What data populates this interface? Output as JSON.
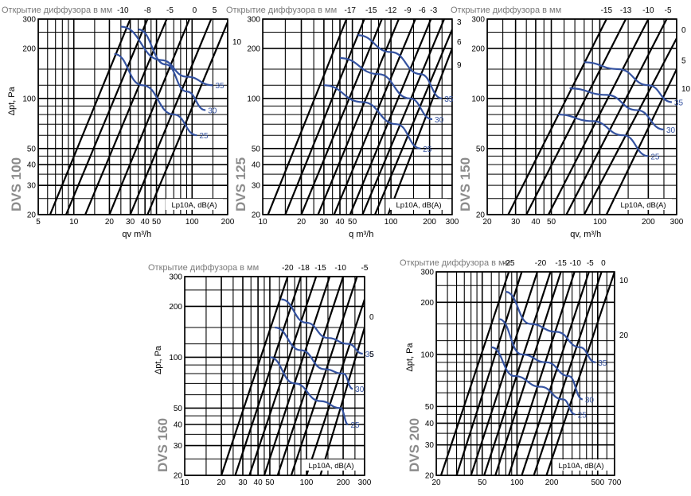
{
  "chart_data": [
    {
      "type": "line",
      "header": "Открытие диффузора в мм",
      "model": "DVS 100",
      "ylabel": "Δpt, Pa",
      "xlabel": "qv m³/h",
      "noise_label": "Lp10A, dB(A)",
      "x_ticks": [
        5,
        10,
        20,
        30,
        40,
        50,
        100,
        200
      ],
      "y_ticks": [
        20,
        30,
        40,
        50,
        100,
        200,
        300
      ],
      "xlim": [
        5,
        200
      ],
      "ylim": [
        20,
        300
      ],
      "opening_labels": [
        {
          "text": "-10",
          "x": 26,
          "y": 300
        },
        {
          "text": "-8",
          "x": 42,
          "y": 300
        },
        {
          "text": "-5",
          "x": 65,
          "y": 300
        },
        {
          "text": "0",
          "x": 105,
          "y": 300
        },
        {
          "text": "5",
          "x": 155,
          "y": 300
        },
        {
          "text": "10",
          "x": 200,
          "y": 220
        }
      ],
      "openings": [
        {
          "label": "-10",
          "points": [
            [
              6.3,
              20
            ],
            [
              30,
              300
            ]
          ]
        },
        {
          "label": "-8",
          "points": [
            [
              8.6,
              20
            ],
            [
              42,
              300
            ]
          ]
        },
        {
          "label": "-5",
          "points": [
            [
              12.5,
              20
            ],
            [
              61,
              300
            ]
          ]
        },
        {
          "label": "0",
          "points": [
            [
              20,
              20
            ],
            [
              95,
              300
            ]
          ]
        },
        {
          "label": "5",
          "points": [
            [
              30,
              20
            ],
            [
              145,
              300
            ]
          ]
        },
        {
          "label": "10",
          "points": [
            [
              42,
              20
            ],
            [
              205,
              300
            ]
          ]
        }
      ],
      "noise_series": [
        {
          "name": "35",
          "points": [
            [
              25,
              270
            ],
            [
              55,
              170
            ],
            [
              90,
              135
            ],
            [
              150,
              120
            ]
          ]
        },
        {
          "name": "30",
          "points": [
            [
              35,
              260
            ],
            [
              60,
              160
            ],
            [
              90,
              110
            ],
            [
              130,
              85
            ]
          ]
        },
        {
          "name": "25",
          "points": [
            [
              22,
              185
            ],
            [
              38,
              120
            ],
            [
              70,
              80
            ],
            [
              110,
              60
            ]
          ]
        }
      ]
    },
    {
      "type": "line",
      "header": "Открытие диффузора в мм",
      "model": "DVS 125",
      "ylabel": "",
      "xlabel": "q m³/h",
      "noise_label": "Lp10A, dB(A)",
      "x_ticks": [
        10,
        20,
        30,
        40,
        50,
        100,
        200,
        300
      ],
      "y_ticks": [
        20,
        30,
        40,
        50,
        100,
        200,
        300
      ],
      "xlim": [
        10,
        300
      ],
      "ylim": [
        20,
        300
      ],
      "opening_labels": [
        {
          "text": "-17",
          "x": 48,
          "y": 300
        },
        {
          "text": "-15",
          "x": 70,
          "y": 300
        },
        {
          "text": "-12",
          "x": 100,
          "y": 300
        },
        {
          "text": "-9",
          "x": 135,
          "y": 300
        },
        {
          "text": "-6",
          "x": 175,
          "y": 300
        },
        {
          "text": "-3",
          "x": 215,
          "y": 300
        },
        {
          "text": "3",
          "x": 300,
          "y": 290
        },
        {
          "text": "6",
          "x": 300,
          "y": 220
        },
        {
          "text": "9",
          "x": 300,
          "y": 160
        }
      ],
      "openings": [
        {
          "label": "-17",
          "points": [
            [
              11,
              20
            ],
            [
              45,
              300
            ]
          ]
        },
        {
          "label": "-15",
          "points": [
            [
              15,
              20
            ],
            [
              62,
              300
            ]
          ]
        },
        {
          "label": "-12",
          "points": [
            [
              20,
              20
            ],
            [
              85,
              300
            ]
          ]
        },
        {
          "label": "-9",
          "points": [
            [
              27,
              20
            ],
            [
              115,
              300
            ]
          ]
        },
        {
          "label": "-6",
          "points": [
            [
              36,
              20
            ],
            [
              155,
              300
            ]
          ]
        },
        {
          "label": "-3",
          "points": [
            [
              48,
              20
            ],
            [
              205,
              300
            ]
          ]
        },
        {
          "label": "0",
          "points": [
            [
              60,
              20
            ],
            [
              260,
              300
            ]
          ]
        },
        {
          "label": "3",
          "points": [
            [
              75,
              20
            ],
            [
              300,
              260
            ]
          ]
        },
        {
          "label": "6",
          "points": [
            [
              95,
              20
            ],
            [
              300,
              200
            ]
          ]
        }
      ],
      "noise_series": [
        {
          "name": "35",
          "points": [
            [
              55,
              240
            ],
            [
              100,
              190
            ],
            [
              170,
              140
            ],
            [
              250,
              100
            ]
          ]
        },
        {
          "name": "30",
          "points": [
            [
              40,
              175
            ],
            [
              80,
              140
            ],
            [
              140,
              100
            ],
            [
              210,
              75
            ]
          ]
        },
        {
          "name": "25",
          "points": [
            [
              30,
              120
            ],
            [
              60,
              95
            ],
            [
              110,
              70
            ],
            [
              170,
              50
            ]
          ]
        }
      ]
    },
    {
      "type": "line",
      "header": "Открытие диффузора в мм",
      "model": "DVS 150",
      "ylabel": "",
      "xlabel": "qv, m³/h",
      "noise_label": "Lp10A, dB(A)",
      "x_ticks": [
        20,
        30,
        40,
        50,
        100,
        200,
        300
      ],
      "y_ticks": [
        20,
        50,
        100,
        200,
        300
      ],
      "xlim": [
        20,
        300
      ],
      "ylim": [
        20,
        300
      ],
      "opening_labels": [
        {
          "text": "-15",
          "x": 110,
          "y": 300
        },
        {
          "text": "-13",
          "x": 145,
          "y": 300
        },
        {
          "text": "-10",
          "x": 200,
          "y": 300
        },
        {
          "text": "-5",
          "x": 265,
          "y": 300
        },
        {
          "text": "0",
          "x": 300,
          "y": 260
        },
        {
          "text": "5",
          "x": 300,
          "y": 170
        },
        {
          "text": "10",
          "x": 300,
          "y": 115
        }
      ],
      "openings": [
        {
          "label": "-15",
          "points": [
            [
              27,
              20
            ],
            [
              110,
              300
            ]
          ]
        },
        {
          "label": "-13",
          "points": [
            [
              35,
              20
            ],
            [
              145,
              300
            ]
          ]
        },
        {
          "label": "-10",
          "points": [
            [
              48,
              20
            ],
            [
              200,
              300
            ]
          ]
        },
        {
          "label": "-5",
          "points": [
            [
              62,
              20
            ],
            [
              260,
              300
            ]
          ]
        },
        {
          "label": "0",
          "points": [
            [
              80,
              20
            ],
            [
              300,
              230
            ]
          ]
        },
        {
          "label": "5",
          "points": [
            [
              110,
              20
            ],
            [
              300,
              150
            ]
          ]
        }
      ],
      "noise_series": [
        {
          "name": "35",
          "points": [
            [
              80,
              165
            ],
            [
              130,
              150
            ],
            [
              200,
              120
            ],
            [
              280,
              95
            ]
          ]
        },
        {
          "name": "30",
          "points": [
            [
              65,
              115
            ],
            [
              110,
              105
            ],
            [
              170,
              85
            ],
            [
              250,
              65
            ]
          ]
        },
        {
          "name": "25",
          "points": [
            [
              55,
              80
            ],
            [
              90,
              73
            ],
            [
              140,
              60
            ],
            [
              200,
              45
            ]
          ]
        }
      ]
    },
    {
      "type": "line",
      "header": "Открытие диффузора в мм",
      "model": "DVS 160",
      "ylabel": "Δpt, Pa",
      "xlabel": "",
      "noise_label": "Lp10A, dB(A)",
      "x_ticks": [
        10,
        20,
        30,
        40,
        50,
        100,
        200,
        300
      ],
      "y_ticks": [
        20,
        30,
        40,
        50,
        100,
        200,
        300
      ],
      "xlim": [
        10,
        300
      ],
      "ylim": [
        20,
        300
      ],
      "opening_labels": [
        {
          "text": "-20",
          "x": 70,
          "y": 300
        },
        {
          "text": "-18",
          "x": 95,
          "y": 300
        },
        {
          "text": "-15",
          "x": 130,
          "y": 300
        },
        {
          "text": "-10",
          "x": 190,
          "y": 300
        },
        {
          "text": "-5",
          "x": 300,
          "y": 300
        },
        {
          "text": "0",
          "x": 300,
          "y": 175
        },
        {
          "text": "5",
          "x": 300,
          "y": 105
        }
      ],
      "openings": [
        {
          "label": "-20",
          "points": [
            [
              20,
              20
            ],
            [
              70,
              300
            ]
          ]
        },
        {
          "label": "-18",
          "points": [
            [
              26,
              20
            ],
            [
              90,
              300
            ]
          ]
        },
        {
          "label": "-15",
          "points": [
            [
              34,
              20
            ],
            [
              120,
              300
            ]
          ]
        },
        {
          "label": "-12",
          "points": [
            [
              45,
              20
            ],
            [
              155,
              300
            ]
          ]
        },
        {
          "label": "-10",
          "points": [
            [
              58,
              20
            ],
            [
              200,
              300
            ]
          ]
        },
        {
          "label": "-8",
          "points": [
            [
              75,
              20
            ],
            [
              260,
              300
            ]
          ]
        },
        {
          "label": "-5",
          "points": [
            [
              100,
              20
            ],
            [
              300,
              220
            ]
          ]
        },
        {
          "label": "0",
          "points": [
            [
              130,
              20
            ],
            [
              300,
              150
            ]
          ]
        }
      ],
      "noise_series": [
        {
          "name": "35",
          "points": [
            [
              62,
              220
            ],
            [
              100,
              160
            ],
            [
              150,
              130
            ],
            [
              220,
              120
            ],
            [
              290,
              105
            ]
          ]
        },
        {
          "name": "30",
          "points": [
            [
              55,
              150
            ],
            [
              90,
              110
            ],
            [
              140,
              85
            ],
            [
              200,
              80
            ],
            [
              240,
              65
            ]
          ]
        },
        {
          "name": "25",
          "points": [
            [
              50,
              100
            ],
            [
              80,
              70
            ],
            [
              130,
              55
            ],
            [
              190,
              50
            ],
            [
              220,
              40
            ]
          ]
        }
      ]
    },
    {
      "type": "line",
      "header": "Открытие диффузора в мм",
      "model": "DVS 200",
      "ylabel": "Δpt, Pa",
      "xlabel": "",
      "noise_label": "Lp10A, dB(A)",
      "x_ticks": [
        20,
        50,
        100,
        200,
        500,
        700
      ],
      "y_ticks": [
        20,
        30,
        40,
        50,
        100,
        200,
        300
      ],
      "xlim": [
        20,
        700
      ],
      "ylim": [
        20,
        300
      ],
      "opening_labels": [
        {
          "text": "-25",
          "x": 85,
          "y": 300
        },
        {
          "text": "-20",
          "x": 160,
          "y": 300
        },
        {
          "text": "-15",
          "x": 240,
          "y": 300
        },
        {
          "text": "-10",
          "x": 320,
          "y": 300
        },
        {
          "text": "-5",
          "x": 430,
          "y": 300
        },
        {
          "text": "0",
          "x": 560,
          "y": 300
        },
        {
          "text": "10",
          "x": 700,
          "y": 270
        },
        {
          "text": "20",
          "x": 700,
          "y": 130
        }
      ],
      "openings": [
        {
          "label": "-25",
          "points": [
            [
              22,
              20
            ],
            [
              85,
              300
            ]
          ]
        },
        {
          "label": "-22",
          "points": [
            [
              30,
              20
            ],
            [
              110,
              300
            ]
          ]
        },
        {
          "label": "-20",
          "points": [
            [
              40,
              20
            ],
            [
              150,
              300
            ]
          ]
        },
        {
          "label": "-18",
          "points": [
            [
              52,
              20
            ],
            [
              195,
              300
            ]
          ]
        },
        {
          "label": "-15",
          "points": [
            [
              65,
              20
            ],
            [
              240,
              300
            ]
          ]
        },
        {
          "label": "-12",
          "points": [
            [
              85,
              20
            ],
            [
              315,
              300
            ]
          ]
        },
        {
          "label": "-10",
          "points": [
            [
              110,
              20
            ],
            [
              420,
              300
            ]
          ]
        },
        {
          "label": "-5",
          "points": [
            [
              140,
              20
            ],
            [
              540,
              300
            ]
          ]
        },
        {
          "label": "0",
          "points": [
            [
              180,
              20
            ],
            [
              700,
              300
            ]
          ]
        }
      ],
      "noise_series": [
        {
          "name": "35",
          "points": [
            [
              80,
              230
            ],
            [
              130,
              150
            ],
            [
              220,
              135
            ],
            [
              350,
              110
            ],
            [
              480,
              90
            ]
          ]
        },
        {
          "name": "30",
          "points": [
            [
              70,
              160
            ],
            [
              110,
              100
            ],
            [
              180,
              90
            ],
            [
              280,
              75
            ],
            [
              370,
              55
            ]
          ]
        },
        {
          "name": "25",
          "points": [
            [
              60,
              110
            ],
            [
              95,
              75
            ],
            [
              160,
              65
            ],
            [
              250,
              55
            ],
            [
              320,
              45
            ]
          ]
        }
      ]
    }
  ]
}
